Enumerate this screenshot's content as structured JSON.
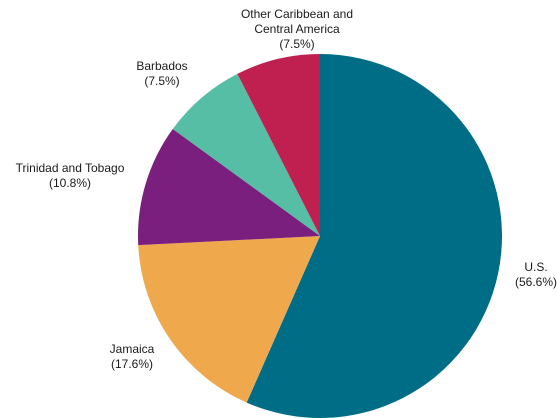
{
  "chart_data": {
    "type": "pie",
    "title": "",
    "series": [
      {
        "values": [
          56.6,
          17.6,
          10.8,
          7.5,
          7.5
        ]
      }
    ],
    "categories": [
      "U.S.",
      "Jamaica",
      "Trinidad and Tobago",
      "Barbados",
      "Other Caribbean and Central America"
    ],
    "labels": [
      {
        "lines": [
          "U.S.",
          "(56.6%)"
        ]
      },
      {
        "lines": [
          "Jamaica",
          "(17.6%)"
        ]
      },
      {
        "lines": [
          "Trinidad and Tobago",
          "(10.8%)"
        ]
      },
      {
        "lines": [
          "Barbados",
          "(7.5%)"
        ]
      },
      {
        "lines": [
          "Other Caribbean and",
          "Central America",
          "(7.5%)"
        ]
      }
    ],
    "colors": [
      "#006d87",
      "#f0a84c",
      "#7a1f7d",
      "#55bea4",
      "#c0204f"
    ],
    "start_angle": "12 o'clock",
    "direction": "clockwise"
  }
}
